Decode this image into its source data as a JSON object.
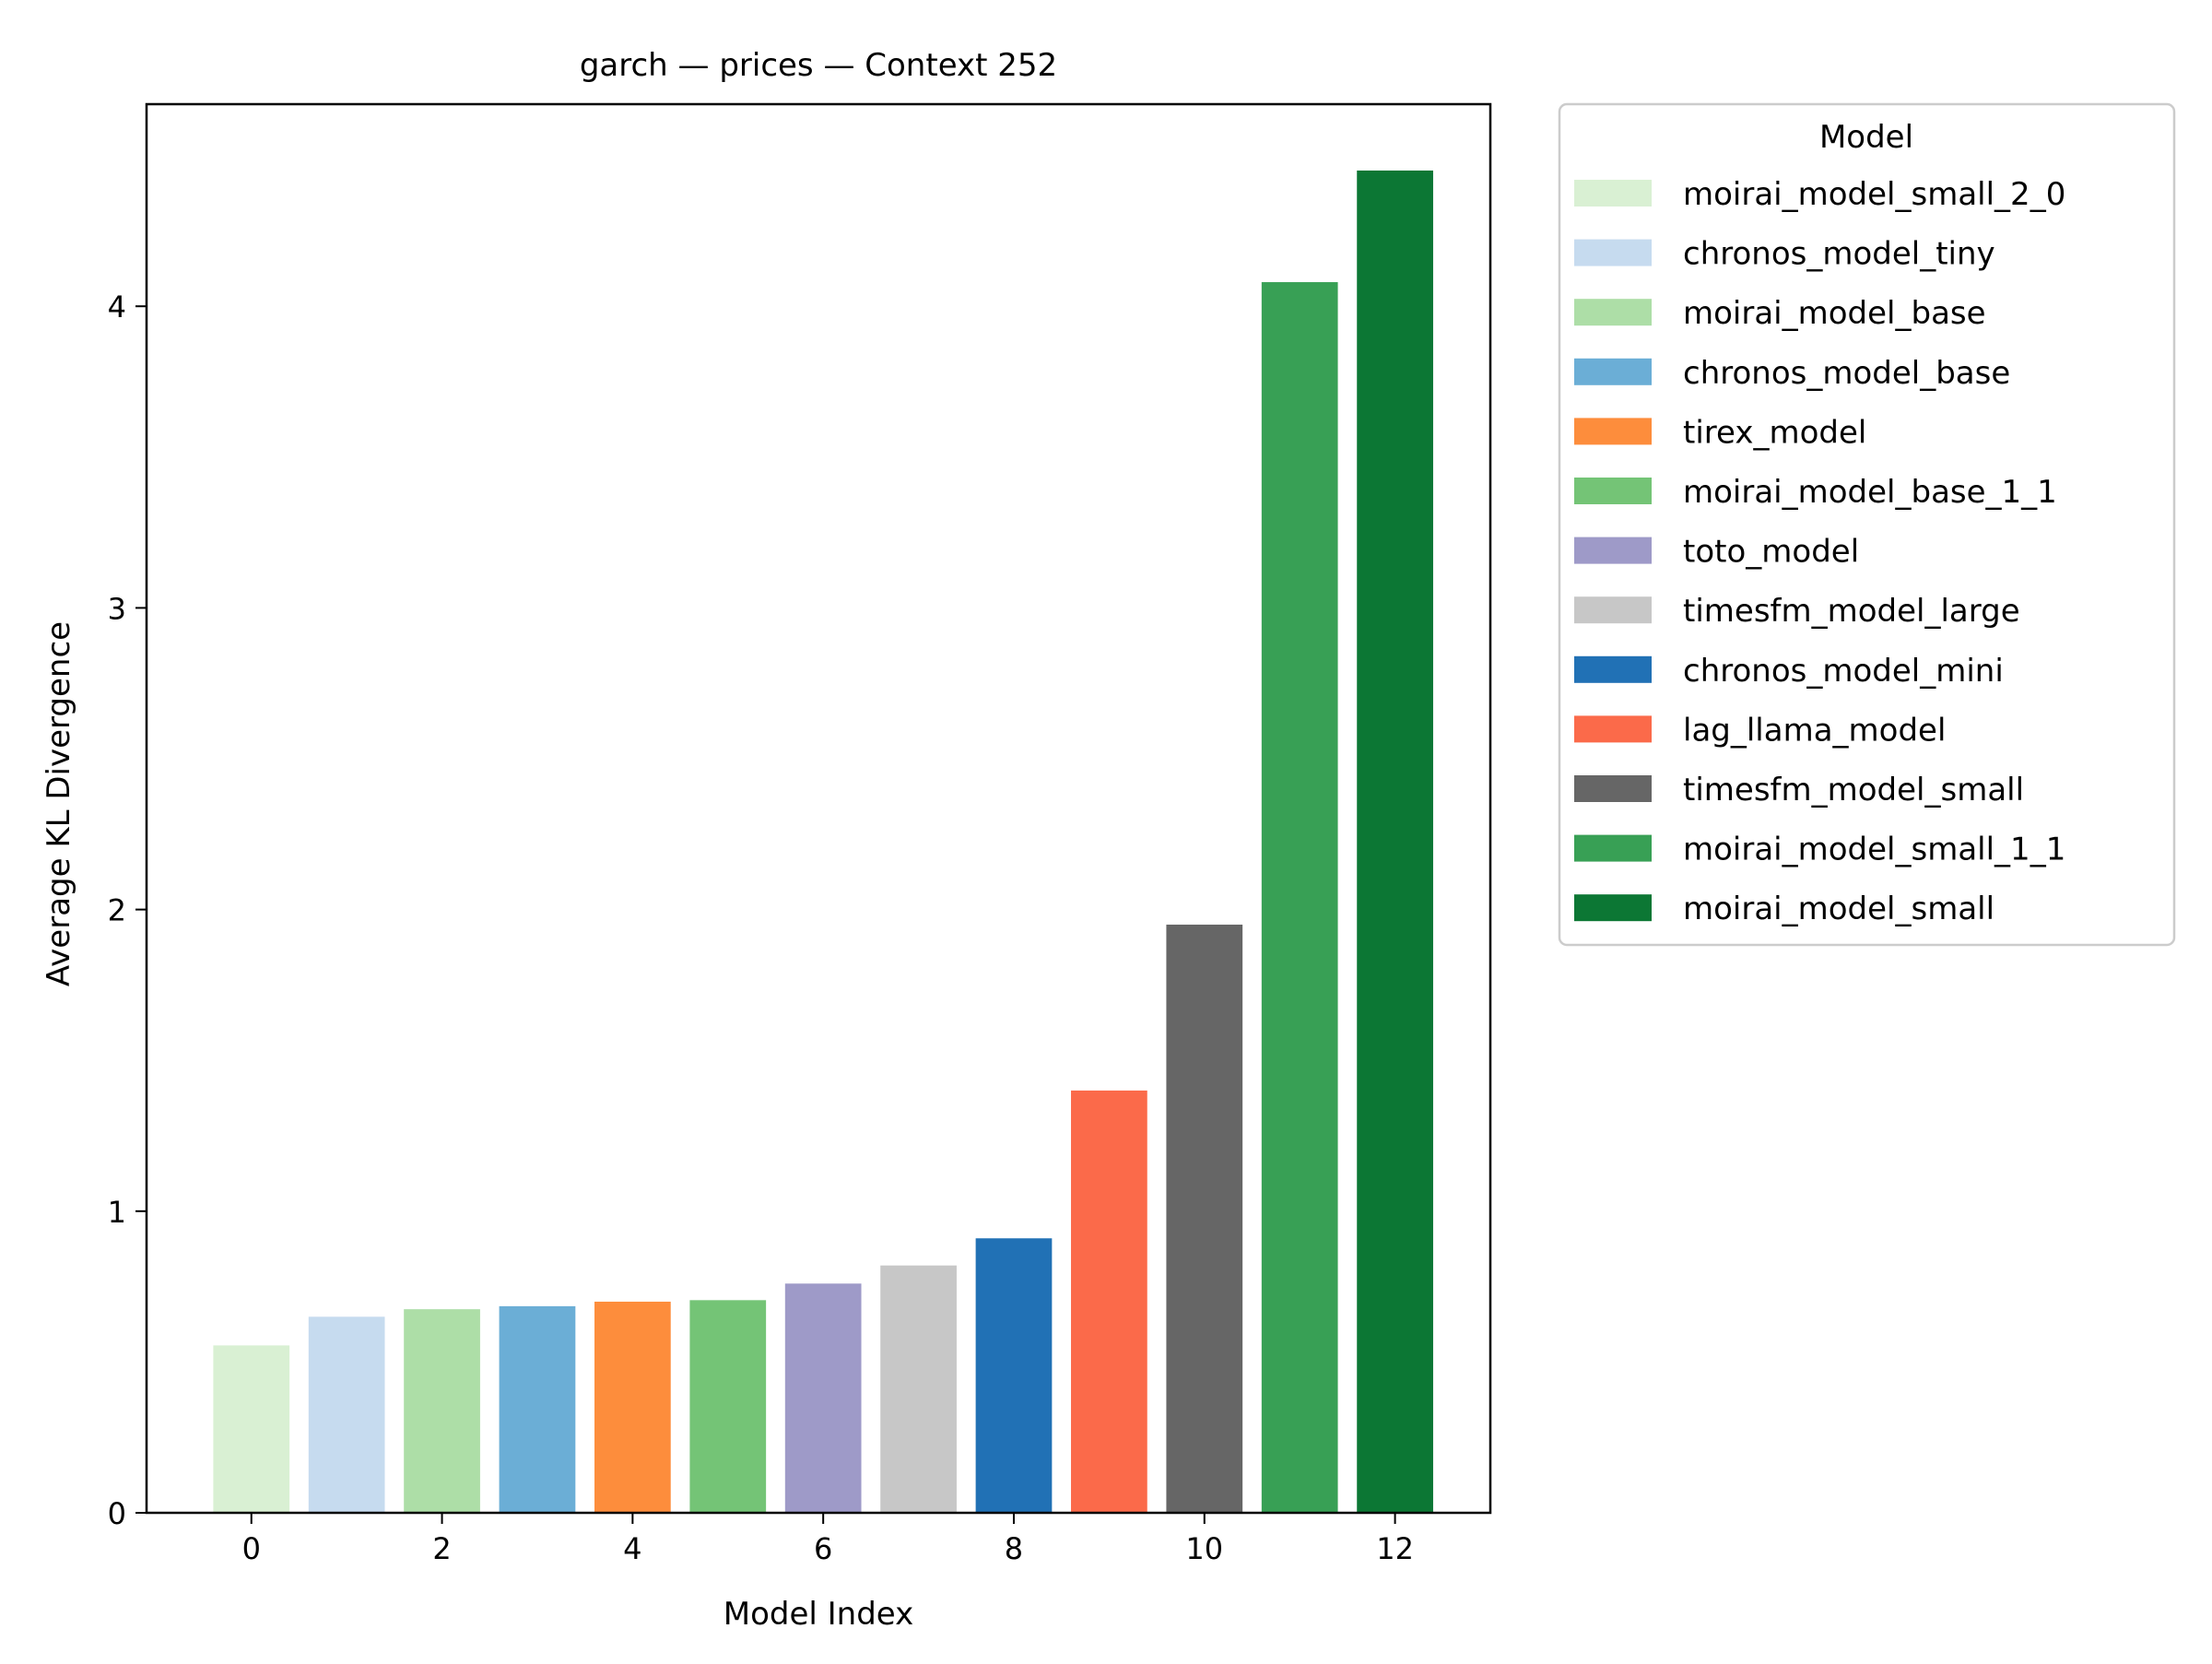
{
  "chart_data": {
    "type": "bar",
    "title": "garch — prices — Context 252",
    "xlabel": "Model Index",
    "ylabel": "Average KL Divergence",
    "x": [
      0,
      1,
      2,
      3,
      4,
      5,
      6,
      7,
      8,
      9,
      10,
      11,
      12
    ],
    "xlim": [
      -1.1,
      13.0
    ],
    "ylim": [
      0,
      4.67
    ],
    "xticks": [
      0,
      2,
      4,
      6,
      8,
      10,
      12
    ],
    "yticks": [
      0,
      1,
      2,
      3,
      4
    ],
    "grid": false,
    "legend": {
      "title": "Model",
      "placement": "outside-right"
    },
    "series": [
      {
        "name": "moirai_model_small_2_0",
        "value": 0.555,
        "color": "#d9f0d3"
      },
      {
        "name": "chronos_model_tiny",
        "value": 0.65,
        "color": "#c6dbef"
      },
      {
        "name": "moirai_model_base",
        "value": 0.675,
        "color": "#addea7"
      },
      {
        "name": "chronos_model_base",
        "value": 0.685,
        "color": "#6baed6"
      },
      {
        "name": "tirex_model",
        "value": 0.7,
        "color": "#fd8d3c"
      },
      {
        "name": "moirai_model_base_1_1",
        "value": 0.705,
        "color": "#74c476"
      },
      {
        "name": "toto_model",
        "value": 0.76,
        "color": "#9e9ac8"
      },
      {
        "name": "timesfm_model_large",
        "value": 0.82,
        "color": "#c7c7c7"
      },
      {
        "name": "chronos_model_mini",
        "value": 0.91,
        "color": "#2171b5"
      },
      {
        "name": "lag_llama_model",
        "value": 1.4,
        "color": "#fb6a4a"
      },
      {
        "name": "timesfm_model_small",
        "value": 1.95,
        "color": "#666666"
      },
      {
        "name": "moirai_model_small_1_1",
        "value": 4.08,
        "color": "#38a055"
      },
      {
        "name": "moirai_model_small",
        "value": 4.45,
        "color": "#0c7734"
      }
    ]
  }
}
